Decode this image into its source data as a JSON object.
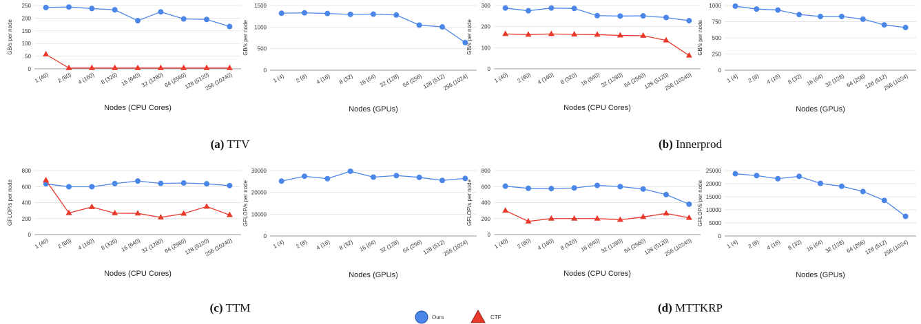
{
  "captions": [
    {
      "letter": "(a)",
      "text": "TTV"
    },
    {
      "letter": "(b)",
      "text": "Innerprod"
    },
    {
      "letter": "(c)",
      "text": "TTM"
    },
    {
      "letter": "(d)",
      "text": "MTTKRP"
    }
  ],
  "legend": [
    {
      "label": "Ours",
      "color": "#4A86E8",
      "marker": "circle"
    },
    {
      "label": "CTF",
      "color": "#E8392B",
      "marker": "triangle"
    }
  ],
  "colors": {
    "ours": "#4A86E8",
    "ctf": "#E8392B",
    "grid": "#dddddd",
    "axis": "#999999"
  },
  "chart_data": [
    {
      "type": "line",
      "panel": "TTV-CPU",
      "categories": [
        "1 (40)",
        "2 (80)",
        "4 (160)",
        "8 (320)",
        "16 (640)",
        "32 (1280)",
        "64 (2560)",
        "128 (5120)",
        "256 (10240)"
      ],
      "xlabel": "Nodes (CPU Cores)",
      "ylabel": "GB/s per node",
      "ylim": [
        0,
        250
      ],
      "yticks": [
        0,
        50,
        100,
        150,
        200,
        250
      ],
      "series": [
        {
          "name": "Ours",
          "values": [
            242,
            244,
            238,
            233,
            190,
            225,
            197,
            195,
            167
          ]
        },
        {
          "name": "CTF",
          "values": [
            57,
            3,
            3,
            3,
            3,
            3,
            3,
            3,
            3
          ]
        }
      ]
    },
    {
      "type": "line",
      "panel": "TTV-GPU",
      "categories": [
        "1 (4)",
        "2 (8)",
        "4 (16)",
        "8 (32)",
        "16 (64)",
        "32 (128)",
        "64 (256)",
        "128 (512)",
        "256 (1024)"
      ],
      "xlabel": "Nodes (GPUs)",
      "ylabel": "GB/s per node",
      "ylim": [
        0,
        1500
      ],
      "yticks": [
        0,
        500,
        1000,
        1500
      ],
      "series": [
        {
          "name": "Ours",
          "values": [
            1320,
            1330,
            1315,
            1295,
            1300,
            1280,
            1045,
            1005,
            640
          ]
        }
      ]
    },
    {
      "type": "line",
      "panel": "Innerprod-CPU",
      "categories": [
        "1 (40)",
        "2 (80)",
        "4 (160)",
        "8 (320)",
        "16 (640)",
        "32 (1280)",
        "64 (2560)",
        "128 (5120)",
        "256 (10240)"
      ],
      "xlabel": "Nodes (CPU Cores)",
      "ylabel": "GB/s per node",
      "ylim": [
        0,
        300
      ],
      "yticks": [
        0,
        100,
        200,
        300
      ],
      "series": [
        {
          "name": "Ours",
          "values": [
            288,
            275,
            288,
            286,
            252,
            250,
            251,
            243,
            228
          ]
        },
        {
          "name": "CTF",
          "values": [
            165,
            162,
            165,
            163,
            162,
            158,
            157,
            135,
            63
          ]
        }
      ]
    },
    {
      "type": "line",
      "panel": "Innerprod-GPU",
      "categories": [
        "1 (4)",
        "2 (8)",
        "4 (16)",
        "8 (32)",
        "16 (64)",
        "32 (128)",
        "64 (256)",
        "128 (512)",
        "256 (1024)"
      ],
      "xlabel": "Nodes (GPUs)",
      "ylabel": "GB/s per node",
      "ylim": [
        0,
        1000
      ],
      "yticks": [
        0,
        250,
        500,
        750,
        1000
      ],
      "series": [
        {
          "name": "Ours",
          "values": [
            990,
            945,
            930,
            860,
            830,
            830,
            790,
            700,
            660
          ]
        }
      ]
    },
    {
      "type": "line",
      "panel": "TTM-CPU",
      "categories": [
        "1 (40)",
        "2 (80)",
        "4 (160)",
        "8 (320)",
        "16 (640)",
        "32 (1280)",
        "64 (2560)",
        "128 (5120)",
        "256 (10240)"
      ],
      "xlabel": "Nodes (CPU Cores)",
      "ylabel": "GFLOP/s per node",
      "ylim": [
        0,
        800
      ],
      "yticks": [
        0,
        200,
        400,
        600,
        800
      ],
      "series": [
        {
          "name": "Ours",
          "values": [
            635,
            598,
            598,
            638,
            670,
            640,
            645,
            635,
            612
          ]
        },
        {
          "name": "CTF",
          "values": [
            680,
            270,
            345,
            268,
            265,
            215,
            262,
            350,
            245
          ]
        }
      ]
    },
    {
      "type": "line",
      "panel": "TTM-GPU",
      "categories": [
        "1 (4)",
        "2 (8)",
        "4 (16)",
        "8 (32)",
        "16 (64)",
        "32 (128)",
        "64 (256)",
        "128 (512)",
        "256 (1024)"
      ],
      "xlabel": "Nodes (GPUs)",
      "ylabel": "GFLOP/s per node",
      "ylim": [
        0,
        30000
      ],
      "yticks": [
        0,
        10000,
        20000,
        30000
      ],
      "series": [
        {
          "name": "Ours",
          "values": [
            25200,
            27400,
            26300,
            29700,
            27000,
            27700,
            26900,
            25500,
            26400
          ]
        }
      ]
    },
    {
      "type": "line",
      "panel": "MTTKRP-CPU",
      "categories": [
        "1 (40)",
        "2 (80)",
        "4 (160)",
        "8 (320)",
        "16 (640)",
        "32 (1280)",
        "64 (2560)",
        "128 (5120)",
        "256 (10240)"
      ],
      "xlabel": "Nodes (CPU Cores)",
      "ylabel": "GFLOP/s per node",
      "ylim": [
        0,
        800
      ],
      "yticks": [
        0,
        200,
        400,
        600,
        800
      ],
      "series": [
        {
          "name": "Ours",
          "values": [
            605,
            578,
            575,
            583,
            615,
            600,
            570,
            500,
            380
          ]
        },
        {
          "name": "CTF",
          "values": [
            300,
            165,
            200,
            200,
            200,
            185,
            220,
            265,
            210
          ]
        }
      ]
    },
    {
      "type": "line",
      "panel": "MTTKRP-GPU",
      "categories": [
        "1 (4)",
        "2 (8)",
        "4 (16)",
        "8 (32)",
        "16 (64)",
        "32 (128)",
        "64 (256)",
        "128 (512)",
        "256 (1024)"
      ],
      "xlabel": "Nodes (GPUs)",
      "ylabel": "GFLOP/s per node",
      "ylim": [
        0,
        25000
      ],
      "yticks": [
        0,
        5000,
        10000,
        15000,
        20000,
        25000
      ],
      "series": [
        {
          "name": "Ours",
          "values": [
            23800,
            23100,
            21900,
            22800,
            20100,
            19000,
            17000,
            13600,
            7500
          ]
        }
      ]
    }
  ]
}
